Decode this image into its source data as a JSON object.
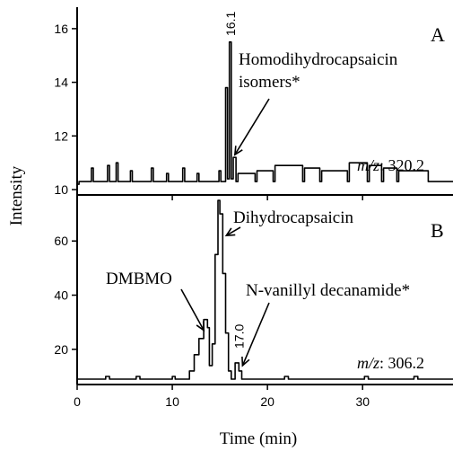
{
  "chart_data": {
    "type": "line",
    "xlabel": "Time (min)",
    "ylabel": "Intensity",
    "xlim": [
      0,
      39.5
    ],
    "x_ticks": [
      0,
      10,
      20,
      30
    ],
    "panels": [
      {
        "letter": "A",
        "ylim": [
          9.8,
          16.8
        ],
        "y_ticks": [
          10,
          12,
          14,
          16
        ],
        "mz_prefix": "m/z",
        "mz_value": ": 320.2",
        "peak_label": "16.1",
        "peak_label_x": 16.1,
        "annotations": [
          {
            "lines": [
              "Homodihydrocapsaicin",
              "isomers*"
            ],
            "arrow_to": [
              16.2,
              11.3
            ]
          }
        ],
        "series": [
          {
            "x": [
              0,
              0.2,
              0.2,
              1.5,
              1.5,
              1.7,
              1.7,
              3.2,
              3.2,
              3.4,
              3.4,
              4.1,
              4.1,
              4.3,
              4.3,
              5.6,
              5.6,
              5.8,
              5.8,
              7.8,
              7.8,
              8.0,
              8.0,
              9.4,
              9.4,
              9.6,
              9.6,
              11.1,
              11.1,
              11.3,
              11.3,
              12.6,
              12.6,
              12.8,
              12.8,
              14.9,
              14.9,
              15.1,
              15.1,
              15.6,
              15.6,
              15.8,
              15.8,
              16.0,
              16.0,
              16.2,
              16.2,
              16.4,
              16.4,
              16.7,
              16.7,
              16.9,
              16.9,
              18.7,
              18.7,
              18.9,
              18.9,
              20.6,
              20.6,
              20.8,
              20.8,
              23.7,
              23.7,
              23.9,
              23.9,
              25.5,
              25.5,
              25.7,
              25.7,
              28.4,
              28.4,
              28.6,
              28.6,
              30.5,
              30.5,
              30.7,
              30.7,
              32.0,
              32.0,
              32.2,
              32.2,
              33.6,
              33.6,
              33.8,
              33.8,
              36.9,
              36.9,
              37.1,
              37.1,
              39.5
            ],
            "y": [
              10.2,
              10.2,
              10.3,
              10.3,
              10.8,
              10.8,
              10.3,
              10.3,
              10.9,
              10.9,
              10.3,
              10.3,
              11.0,
              11.0,
              10.3,
              10.3,
              10.7,
              10.7,
              10.3,
              10.3,
              10.8,
              10.8,
              10.3,
              10.3,
              10.6,
              10.6,
              10.3,
              10.3,
              10.8,
              10.8,
              10.3,
              10.3,
              10.6,
              10.6,
              10.3,
              10.3,
              10.7,
              10.7,
              10.3,
              10.3,
              13.8,
              13.8,
              10.4,
              10.4,
              15.5,
              15.5,
              10.4,
              10.4,
              11.2,
              11.2,
              10.3,
              10.3,
              10.6,
              10.6,
              10.3,
              10.3,
              10.7,
              10.7,
              10.3,
              10.3,
              10.9,
              10.9,
              10.3,
              10.3,
              10.8,
              10.8,
              10.3,
              10.3,
              10.7,
              10.7,
              10.3,
              10.3,
              11.0,
              11.0,
              10.3,
              10.3,
              10.9,
              10.9,
              10.3,
              10.3,
              10.8,
              10.8,
              10.3,
              10.3,
              10.7,
              10.7,
              10.3,
              10.3,
              10.3,
              10.3
            ]
          }
        ]
      },
      {
        "letter": "B",
        "ylim": [
          7,
          77
        ],
        "y_ticks": [
          20,
          40,
          60
        ],
        "mz_prefix": "m/z",
        "mz_value": ": 306.2",
        "peak_label": "17.0",
        "peak_label_x": 17.0,
        "annotations": [
          {
            "lines": [
              "Dihydrocapsaicin"
            ],
            "arrow_to": [
              15.3,
              62
            ]
          },
          {
            "lines": [
              "DMBMO"
            ],
            "arrow_to": [
              13.6,
              27
            ]
          },
          {
            "lines": [
              "N-vanillyl decanamide*"
            ],
            "arrow_to": [
              17.1,
              14
            ]
          }
        ],
        "series": [
          {
            "x": [
              0,
              3.0,
              3.0,
              3.4,
              3.4,
              6.2,
              6.2,
              6.6,
              6.6,
              10.0,
              10.0,
              10.3,
              10.3,
              11.8,
              11.8,
              12.3,
              12.3,
              12.8,
              12.8,
              13.3,
              13.3,
              13.7,
              13.7,
              13.9,
              13.9,
              14.2,
              14.2,
              14.5,
              14.5,
              14.8,
              14.8,
              15.0,
              15.0,
              15.3,
              15.3,
              15.6,
              15.6,
              15.9,
              15.9,
              16.2,
              16.2,
              16.6,
              16.6,
              17.0,
              17.0,
              17.3,
              17.3,
              17.7,
              17.7,
              21.8,
              21.8,
              22.2,
              22.2,
              30.2,
              30.2,
              30.6,
              30.6,
              35.4,
              35.4,
              35.8,
              35.8,
              39.5
            ],
            "y": [
              9,
              9,
              10,
              10,
              9,
              9,
              10,
              10,
              9,
              9,
              10,
              10,
              9,
              9,
              12,
              12,
              18,
              18,
              24,
              24,
              31,
              31,
              28,
              28,
              14,
              14,
              22,
              22,
              55,
              55,
              75,
              75,
              70,
              70,
              48,
              48,
              26,
              26,
              12,
              12,
              9,
              9,
              15,
              15,
              12,
              12,
              9,
              9,
              9,
              9,
              10,
              10,
              9,
              9,
              10,
              10,
              9,
              9,
              10,
              10,
              9,
              9
            ]
          }
        ]
      }
    ]
  }
}
